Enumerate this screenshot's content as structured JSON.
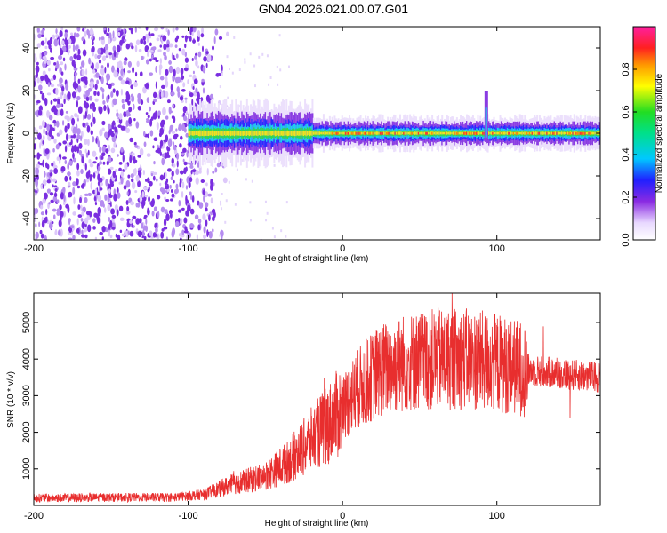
{
  "title": "GN04.2026.021.00.07.G01",
  "chart_data": [
    {
      "type": "heatmap",
      "title": "GN04.2026.021.00.07.G01",
      "xlabel": "Height of straight line (km)",
      "ylabel": "Frequency (Hz)",
      "xlim": [
        -200,
        167
      ],
      "ylim": [
        -50,
        50
      ],
      "xticks": [
        "-200",
        "-100",
        "0",
        "100"
      ],
      "yticks": [
        "-40",
        "-20",
        "0",
        "20",
        "40"
      ],
      "colorbar": {
        "label": "Normalized spectral amplitude",
        "range": [
          0,
          1
        ],
        "ticks": [
          "0.0",
          "0.2",
          "0.4",
          "0.6",
          "0.8"
        ]
      },
      "description_values": {
        "noise_region_x": [
          -200,
          -80
        ],
        "signal_start_x": -100,
        "signal_center_hz": 0,
        "spike_x": 93
      }
    },
    {
      "type": "line",
      "series": [
        {
          "name": "SNR",
          "color": "#e82e2e"
        }
      ],
      "xlabel": "Height of straight line (km)",
      "ylabel": "SNR (10 * v/v)",
      "xlim": [
        -200,
        167
      ],
      "ylim": [
        0,
        5800
      ],
      "xticks": [
        "-200",
        "-100",
        "0",
        "100"
      ],
      "yticks": [
        "1000",
        "2000",
        "3000",
        "4000",
        "5000"
      ],
      "trend_points": {
        "x": [
          -200,
          -150,
          -110,
          -90,
          -70,
          -50,
          -35,
          -20,
          -5,
          10,
          25,
          40,
          60,
          80,
          100,
          120,
          140,
          167
        ],
        "y": [
          200,
          220,
          220,
          300,
          600,
          800,
          1200,
          1800,
          2400,
          3200,
          3700,
          3900,
          4000,
          4000,
          3900,
          3700,
          3600,
          3500
        ]
      }
    }
  ],
  "colors": {
    "line": "#e82e2e",
    "background": "#ffffff",
    "axes": "#000000"
  }
}
